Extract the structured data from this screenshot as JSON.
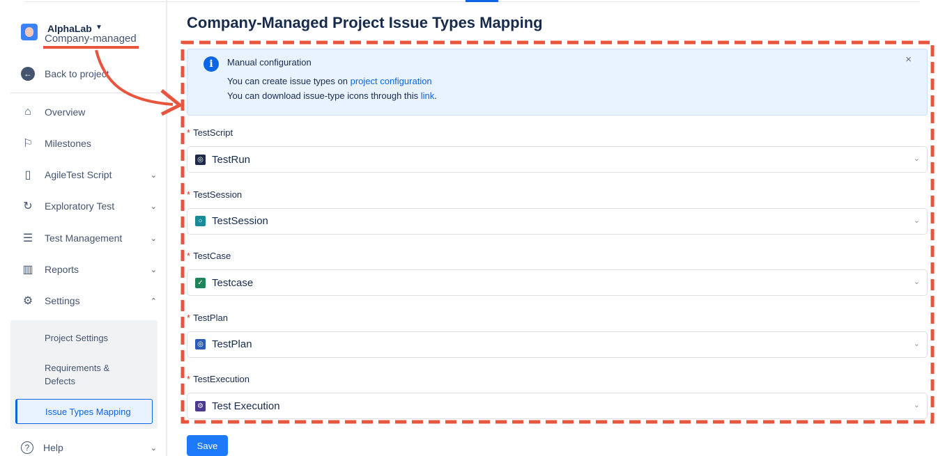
{
  "project": {
    "name": "AlphaLab",
    "type": "Company-managed"
  },
  "sidebar": {
    "back": "Back to project",
    "items": [
      {
        "label": "Overview",
        "icon": "home-icon"
      },
      {
        "label": "Milestones",
        "icon": "flag-icon"
      },
      {
        "label": "AgileTest Script",
        "icon": "book-icon"
      },
      {
        "label": "Exploratory Test",
        "icon": "refresh-icon"
      },
      {
        "label": "Test Management",
        "icon": "list-icon"
      },
      {
        "label": "Reports",
        "icon": "chart-icon"
      },
      {
        "label": "Settings",
        "icon": "gear-icon"
      }
    ],
    "sub": [
      "Project Settings",
      "Requirements &",
      "Defects",
      "Issue Types Mapping"
    ],
    "help": "Help"
  },
  "main": {
    "title": "Company-Managed Project Issue Types Mapping",
    "info": {
      "heading": "Manual configuration",
      "l1": "You can create issue types on ",
      "l1_link": "project configuration",
      "l2": "You can download issue-type icons through this ",
      "l2_link": "link",
      "l2_end": "."
    },
    "fields": [
      {
        "label": "TestScript",
        "value": "TestRun",
        "color": "#1e2a4a"
      },
      {
        "label": "TestSession",
        "value": "TestSession",
        "color": "#1a8a9a"
      },
      {
        "label": "TestCase",
        "value": "Testcase",
        "color": "#1f845a"
      },
      {
        "label": "TestPlan",
        "value": "TestPlan",
        "color": "#2a5bb8"
      },
      {
        "label": "TestExecution",
        "value": "Test Execution",
        "color": "#4b3a8f"
      }
    ],
    "save": "Save"
  },
  "colors": {
    "accent": "#0c66e4",
    "annotation": "#e8553e"
  }
}
